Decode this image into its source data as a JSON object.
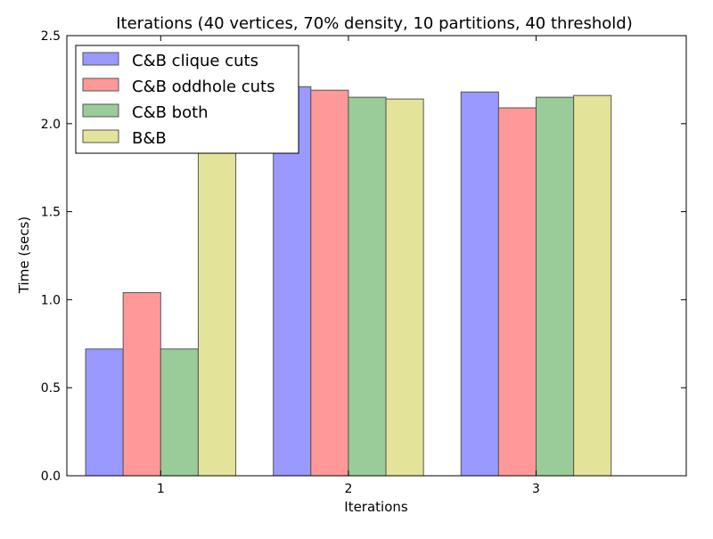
{
  "chart_data": {
    "type": "bar",
    "title": "Iterations (40 vertices, 70% density, 10 partitions, 40 threshold)",
    "xlabel": "Iterations",
    "ylabel": "Time (secs)",
    "categories": [
      "1",
      "2",
      "3"
    ],
    "xlim": [
      0.5,
      3.8
    ],
    "ylim": [
      0,
      2.5
    ],
    "yticks": [
      "0.0",
      "0.5",
      "1.0",
      "1.5",
      "2.0",
      "2.5"
    ],
    "grid": false,
    "legend_position": "top-left",
    "series": [
      {
        "name": "C&B clique cuts",
        "color": "#9999ff",
        "values": [
          0.72,
          2.21,
          2.18
        ]
      },
      {
        "name": "C&B oddhole cuts",
        "color": "#ff9999",
        "values": [
          1.04,
          2.19,
          2.09
        ]
      },
      {
        "name": "C&B both",
        "color": "#99cc99",
        "values": [
          0.72,
          2.15,
          2.15
        ]
      },
      {
        "name": "B&B",
        "color": "#e3e399",
        "values": [
          1.86,
          2.14,
          2.16
        ]
      }
    ]
  }
}
